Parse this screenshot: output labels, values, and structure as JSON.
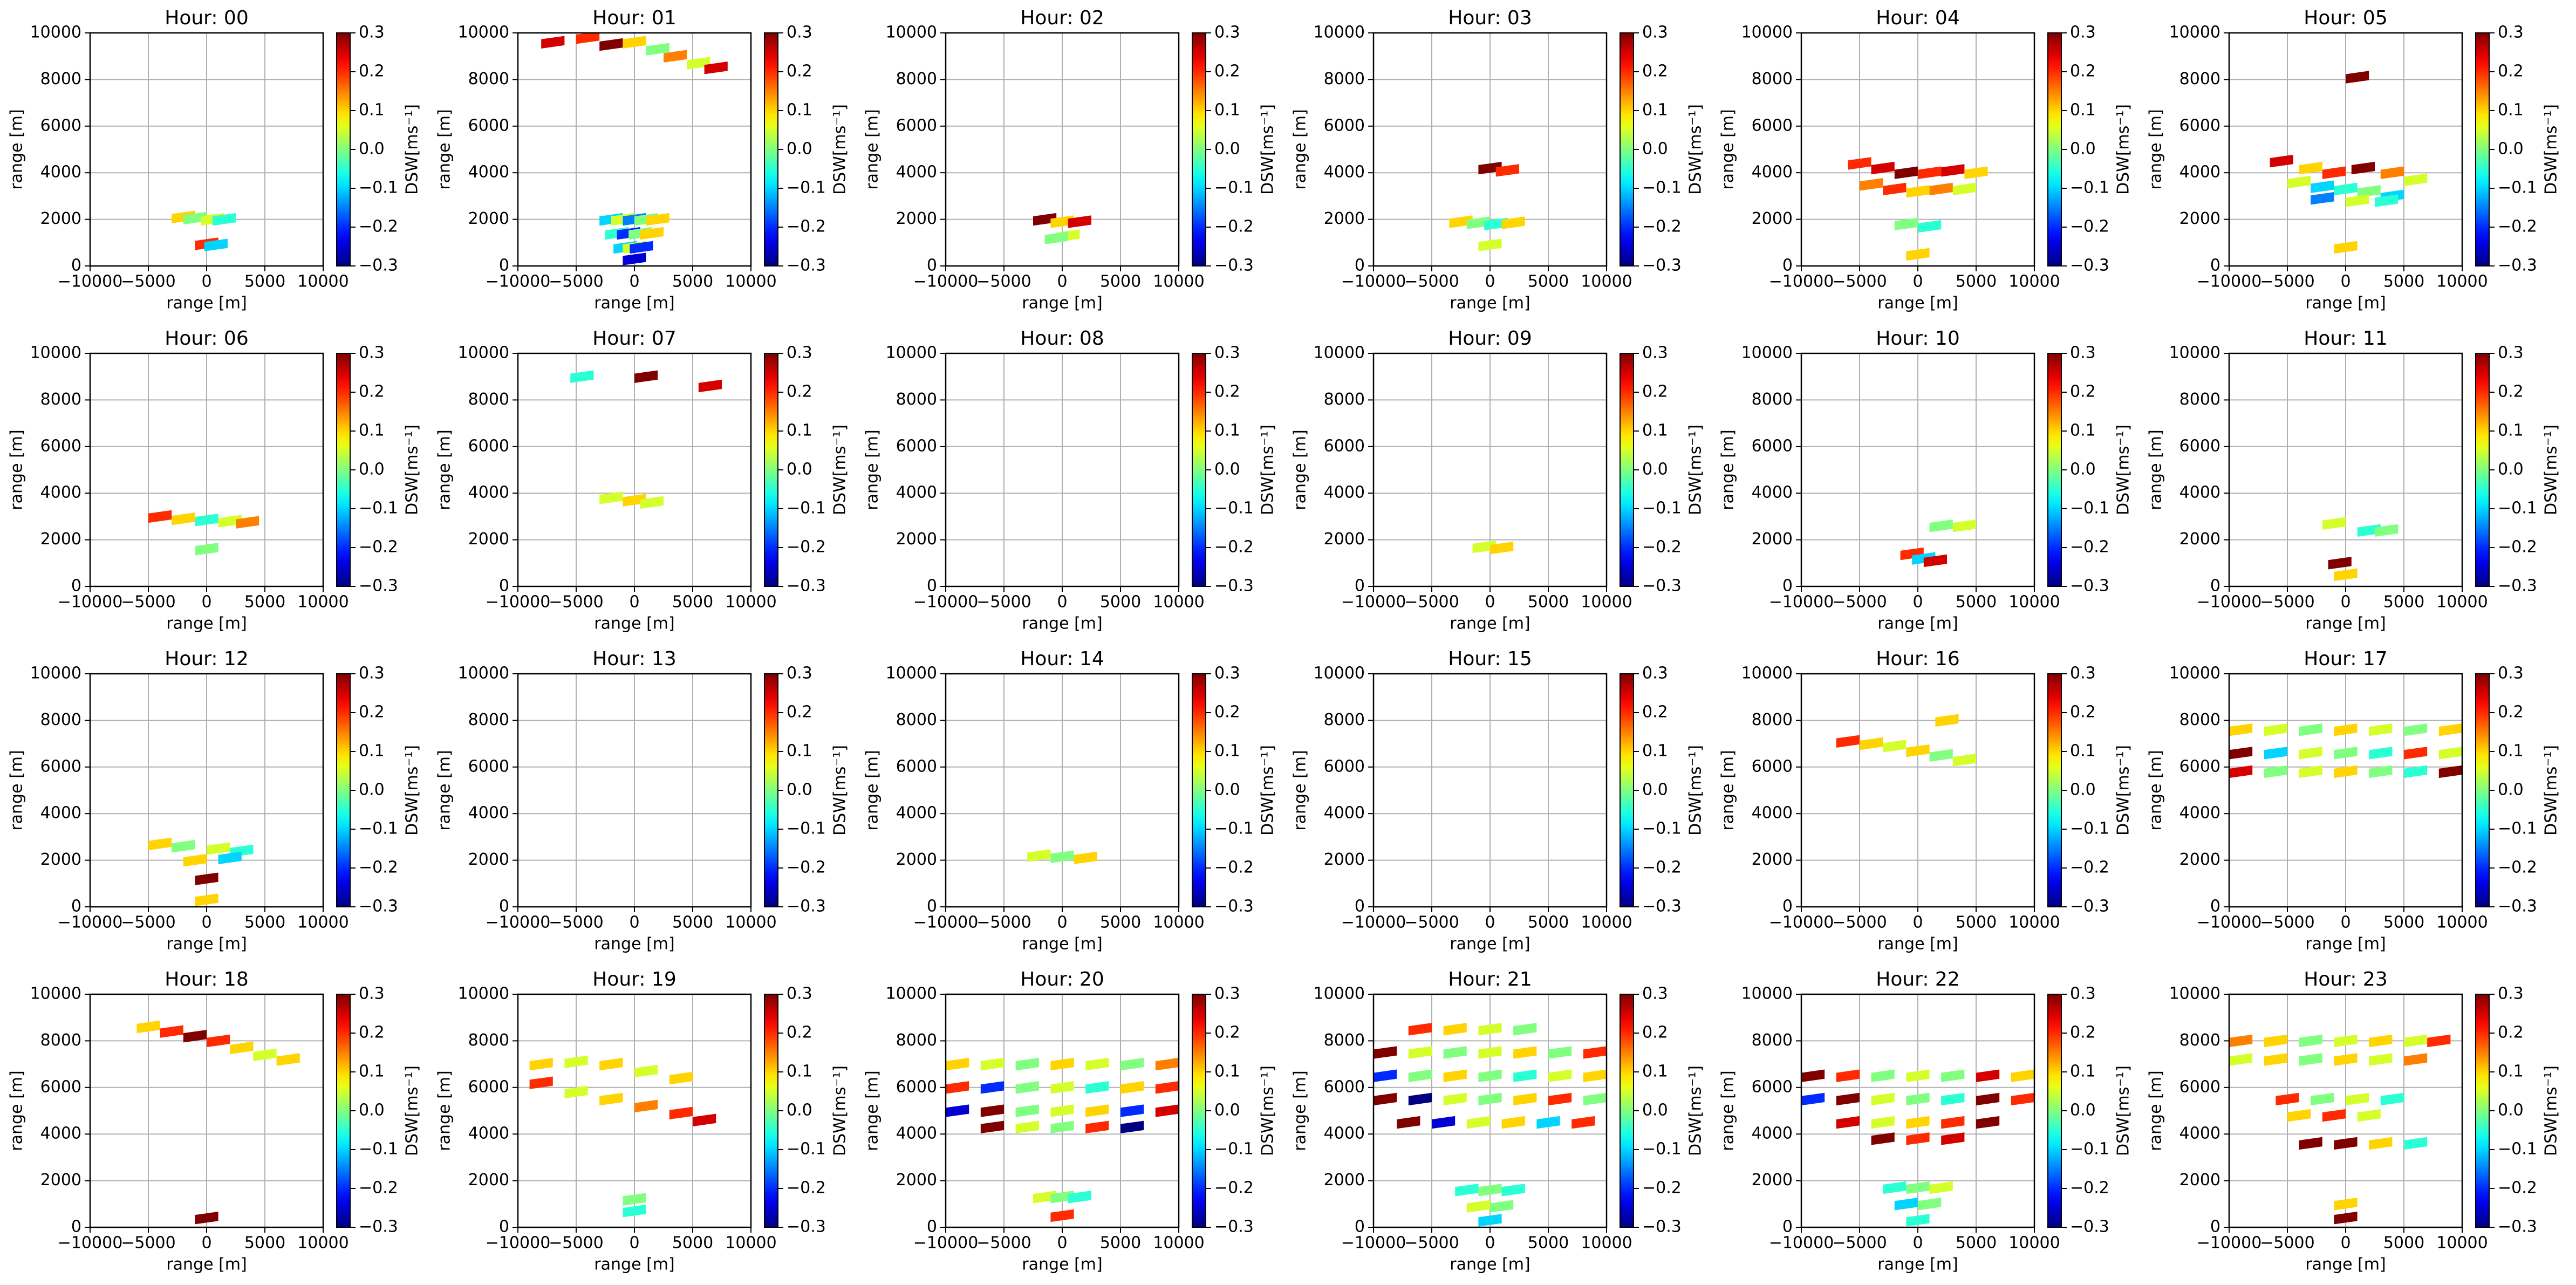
{
  "chart_data": {
    "type": "scatter",
    "colormap": "jet",
    "grid": true,
    "xlabel": "range [m]",
    "ylabel": "range [m]",
    "colorbar_label": "DSW[ms⁻¹]",
    "xlim": [
      -10000,
      10000
    ],
    "ylim": [
      0,
      10000
    ],
    "clim": [
      -0.3,
      0.3
    ],
    "xticks": [
      {
        "value": -10000,
        "label": "−10000"
      },
      {
        "value": -5000,
        "label": "−5000"
      },
      0,
      5000,
      10000
    ],
    "yticks": [
      0,
      2000,
      4000,
      6000,
      8000,
      10000
    ],
    "cticks": [
      {
        "value": -0.3,
        "label": "−0.3"
      },
      {
        "value": -0.2,
        "label": "−0.2"
      },
      {
        "value": -0.1,
        "label": "−0.1"
      },
      {
        "value": 0,
        "label": "0.0"
      },
      0.1,
      0.2,
      0.3
    ],
    "panels": [
      {
        "title": "Hour: 00",
        "x": [
          -2000,
          -1000,
          500,
          1500,
          0,
          800
        ],
        "y": [
          2100,
          2050,
          2000,
          2000,
          950,
          900
        ],
        "values": [
          0.1,
          0,
          0.05,
          -0.05,
          0.2,
          -0.1
        ]
      },
      {
        "title": "Hour: 01",
        "x": [
          -7000,
          -4000,
          -2000,
          0,
          2000,
          3500,
          5500,
          7000,
          -2000,
          -1000,
          0,
          1000,
          2000,
          -1500,
          -500,
          500,
          1500,
          -800,
          0,
          600,
          0
        ],
        "y": [
          9600,
          9800,
          9500,
          9600,
          9300,
          9000,
          8700,
          8500,
          2000,
          2000,
          2000,
          2000,
          2000,
          1400,
          1400,
          1400,
          1400,
          800,
          800,
          800,
          300
        ],
        "values": [
          0.25,
          0.2,
          0.3,
          0.1,
          0,
          0.15,
          0.05,
          0.25,
          -0.1,
          0.05,
          -0.15,
          0,
          0.1,
          -0.05,
          -0.2,
          0,
          0.1,
          -0.1,
          0.05,
          -0.2,
          -0.25
        ]
      },
      {
        "title": "Hour: 02",
        "x": [
          -1500,
          0,
          1500,
          500,
          -500
        ],
        "y": [
          2000,
          1900,
          1900,
          1300,
          1200
        ],
        "values": [
          0.3,
          0.1,
          0.25,
          0.05,
          0
        ]
      },
      {
        "title": "Hour: 03",
        "x": [
          0,
          1500,
          -2500,
          -1000,
          500,
          2000,
          0
        ],
        "y": [
          4200,
          4100,
          1900,
          1850,
          1800,
          1850,
          900
        ],
        "values": [
          0.3,
          0.2,
          0.1,
          0,
          -0.05,
          0.1,
          0.05
        ]
      },
      {
        "title": "Hour: 04",
        "x": [
          -5000,
          -3000,
          -1000,
          1000,
          3000,
          5000,
          -4000,
          -2000,
          0,
          2000,
          4000,
          -1000,
          1000,
          0
        ],
        "y": [
          4400,
          4200,
          4000,
          4000,
          4100,
          4000,
          3500,
          3300,
          3200,
          3300,
          3300,
          1800,
          1700,
          500
        ],
        "values": [
          0.2,
          0.25,
          0.3,
          0.2,
          0.25,
          0.1,
          0.15,
          0.2,
          0.1,
          0.15,
          0.05,
          0,
          -0.05,
          0.1
        ]
      },
      {
        "title": "Hour: 05",
        "x": [
          1000,
          -5500,
          -3000,
          -1000,
          1500,
          4000,
          6000,
          -4000,
          -2000,
          0,
          2000,
          4000,
          -2000,
          1000,
          3500,
          0
        ],
        "y": [
          8100,
          4500,
          4200,
          4000,
          4200,
          4000,
          3700,
          3600,
          3400,
          3300,
          3200,
          3000,
          2900,
          2800,
          2800,
          800
        ],
        "values": [
          0.3,
          0.25,
          0.1,
          0.2,
          0.3,
          0.15,
          0.05,
          0.05,
          -0.1,
          -0.05,
          0,
          -0.1,
          -0.15,
          0.05,
          -0.05,
          0.1
        ]
      },
      {
        "title": "Hour: 06",
        "x": [
          -4000,
          -2000,
          0,
          2000,
          3500,
          0
        ],
        "y": [
          3000,
          2900,
          2850,
          2800,
          2750,
          1600
        ],
        "values": [
          0.2,
          0.1,
          -0.05,
          0.05,
          0.15,
          0
        ]
      },
      {
        "title": "Hour: 07",
        "x": [
          -4500,
          1000,
          6500,
          -2000,
          0,
          1500
        ],
        "y": [
          9000,
          9000,
          8600,
          3800,
          3700,
          3600
        ],
        "values": [
          -0.05,
          0.3,
          0.25,
          0.05,
          0.1,
          0.05
        ]
      },
      {
        "title": "Hour: 08",
        "x": [],
        "y": [],
        "values": []
      },
      {
        "title": "Hour: 09",
        "x": [
          -500,
          1000
        ],
        "y": [
          1700,
          1650
        ],
        "values": [
          0.05,
          0.1
        ]
      },
      {
        "title": "Hour: 10",
        "x": [
          -500,
          500,
          1500,
          2000,
          4000
        ],
        "y": [
          1400,
          1200,
          1100,
          2600,
          2600
        ],
        "values": [
          0.2,
          -0.1,
          0.25,
          0,
          0.05
        ]
      },
      {
        "title": "Hour: 11",
        "x": [
          -1000,
          2000,
          3500,
          -500,
          0
        ],
        "y": [
          2700,
          2400,
          2400,
          1000,
          500
        ],
        "values": [
          0.05,
          -0.05,
          0,
          0.3,
          0.1
        ]
      },
      {
        "title": "Hour: 12",
        "x": [
          -4000,
          -2000,
          1000,
          3000,
          -1000,
          2000,
          0,
          0
        ],
        "y": [
          2700,
          2600,
          2500,
          2400,
          2000,
          2100,
          1200,
          300
        ],
        "values": [
          0.1,
          0,
          0.05,
          -0.05,
          0.1,
          -0.1,
          0.3,
          0.1
        ]
      },
      {
        "title": "Hour: 13",
        "x": [],
        "y": [],
        "values": []
      },
      {
        "title": "Hour: 14",
        "x": [
          -2000,
          0,
          2000
        ],
        "y": [
          2200,
          2150,
          2100
        ],
        "values": [
          0.05,
          0,
          0.1
        ]
      },
      {
        "title": "Hour: 15",
        "x": [],
        "y": [],
        "values": []
      },
      {
        "title": "Hour: 16",
        "x": [
          -6000,
          -4000,
          -2000,
          0,
          2000,
          4000,
          2500
        ],
        "y": [
          7100,
          7000,
          6900,
          6700,
          6500,
          6300,
          8000
        ],
        "values": [
          0.2,
          0.1,
          0.05,
          0.1,
          0,
          0.05,
          0.1
        ]
      },
      {
        "title": "Hour: 17",
        "x": [
          -9000,
          -6000,
          -3000,
          0,
          3000,
          6000,
          9000,
          -9000,
          -6000,
          -3000,
          0,
          3000,
          6000,
          9000,
          -9000,
          -6000,
          -3000,
          0,
          3000,
          6000,
          9000
        ],
        "y": [
          7600,
          7600,
          7600,
          7600,
          7600,
          7600,
          7600,
          6600,
          6600,
          6600,
          6600,
          6600,
          6600,
          6600,
          5800,
          5800,
          5800,
          5800,
          5800,
          5800,
          5800
        ],
        "values": [
          0.1,
          0.05,
          0,
          0.1,
          0.05,
          0,
          0.1,
          0.3,
          -0.1,
          0.05,
          0,
          -0.05,
          0.2,
          0.05,
          0.25,
          0,
          0.05,
          0.1,
          0,
          -0.05,
          0.3
        ]
      },
      {
        "title": "Hour: 18",
        "x": [
          -5000,
          -3000,
          -1000,
          1000,
          3000,
          5000,
          7000,
          0
        ],
        "y": [
          8600,
          8400,
          8200,
          8000,
          7700,
          7400,
          7200,
          400
        ],
        "values": [
          0.1,
          0.2,
          0.3,
          0.2,
          0.1,
          0.05,
          0.1,
          0.3
        ]
      },
      {
        "title": "Hour: 19",
        "x": [
          -8000,
          -5000,
          -2000,
          1000,
          4000,
          -8000,
          -5000,
          -2000,
          1000,
          4000,
          6000,
          0,
          0
        ],
        "y": [
          7000,
          7100,
          7000,
          6700,
          6400,
          6200,
          5800,
          5500,
          5200,
          4900,
          4600,
          1200,
          700
        ],
        "values": [
          0.1,
          0.05,
          0.1,
          0.05,
          0.1,
          0.2,
          0.05,
          0.1,
          0.15,
          0.2,
          0.25,
          0,
          -0.05
        ]
      },
      {
        "title": "Hour: 20",
        "x": [
          -9000,
          -6000,
          -3000,
          0,
          3000,
          6000,
          9000,
          -9000,
          -6000,
          -3000,
          0,
          3000,
          6000,
          9000,
          -9000,
          -6000,
          -3000,
          0,
          3000,
          6000,
          9000,
          -6000,
          -3000,
          0,
          3000,
          6000,
          -1500,
          0,
          1500,
          0
        ],
        "y": [
          7000,
          7000,
          7000,
          7000,
          7000,
          7000,
          7000,
          6000,
          6000,
          6000,
          6000,
          6000,
          6000,
          6000,
          5000,
          5000,
          5000,
          5000,
          5000,
          5000,
          5000,
          4300,
          4300,
          4300,
          4300,
          4300,
          1300,
          1300,
          1300,
          500
        ],
        "values": [
          0.1,
          0.05,
          0,
          0.1,
          0.05,
          0,
          0.15,
          0.2,
          -0.2,
          0,
          0.05,
          -0.05,
          0.1,
          0.2,
          -0.25,
          0.3,
          0,
          0.05,
          0.1,
          -0.2,
          0.25,
          0.3,
          0.05,
          0,
          0.2,
          -0.3,
          0.05,
          0,
          -0.05,
          0.2
        ]
      },
      {
        "title": "Hour: 21",
        "x": [
          -6000,
          -3000,
          0,
          3000,
          -9000,
          -6000,
          -3000,
          0,
          3000,
          6000,
          9000,
          -9000,
          -6000,
          -3000,
          0,
          3000,
          6000,
          9000,
          -9000,
          -6000,
          -3000,
          0,
          3000,
          6000,
          9000,
          -7000,
          -4000,
          -1000,
          2000,
          5000,
          8000,
          -2000,
          0,
          2000,
          -1000,
          1000,
          0
        ],
        "y": [
          8500,
          8500,
          8500,
          8500,
          7500,
          7500,
          7500,
          7500,
          7500,
          7500,
          7500,
          6500,
          6500,
          6500,
          6500,
          6500,
          6500,
          6500,
          5500,
          5500,
          5500,
          5500,
          5500,
          5500,
          5500,
          4500,
          4500,
          4500,
          4500,
          4500,
          4500,
          1600,
          1600,
          1600,
          900,
          900,
          300
        ],
        "values": [
          0.2,
          0.1,
          0.05,
          0,
          0.3,
          0.05,
          0,
          0.05,
          0.1,
          0,
          0.2,
          -0.2,
          0,
          0.1,
          0,
          -0.05,
          0.05,
          0.1,
          0.3,
          -0.3,
          0.05,
          0,
          0.1,
          0.2,
          0,
          0.3,
          -0.25,
          0.05,
          0.1,
          -0.1,
          0.2,
          -0.05,
          0,
          -0.05,
          0.05,
          0,
          -0.1
        ]
      },
      {
        "title": "Hour: 22",
        "x": [
          -9000,
          -6000,
          -3000,
          0,
          3000,
          6000,
          9000,
          -9000,
          -6000,
          -3000,
          0,
          3000,
          6000,
          9000,
          -6000,
          -3000,
          0,
          3000,
          6000,
          -3000,
          0,
          3000,
          -2000,
          0,
          2000,
          -1000,
          1000,
          0
        ],
        "y": [
          6500,
          6500,
          6500,
          6500,
          6500,
          6500,
          6500,
          5500,
          5500,
          5500,
          5500,
          5500,
          5500,
          5500,
          4500,
          4500,
          4500,
          4500,
          4500,
          3800,
          3800,
          3800,
          1700,
          1700,
          1700,
          1000,
          1000,
          300
        ],
        "values": [
          0.3,
          0.2,
          0,
          0.05,
          0,
          0.25,
          0.1,
          -0.2,
          0.3,
          0.05,
          0,
          -0.05,
          0.3,
          0.2,
          0.25,
          0.05,
          0.1,
          0.2,
          0.3,
          0.3,
          0.2,
          0.25,
          -0.05,
          0,
          0.05,
          -0.1,
          0,
          -0.05
        ]
      },
      {
        "title": "Hour: 23",
        "x": [
          -9000,
          -6000,
          -3000,
          0,
          3000,
          6000,
          8000,
          -9000,
          -6000,
          -3000,
          0,
          3000,
          6000,
          -5000,
          -2000,
          1000,
          4000,
          -4000,
          -1000,
          2000,
          -3000,
          0,
          3000,
          6000,
          0,
          0
        ],
        "y": [
          8000,
          8000,
          8000,
          8000,
          8000,
          8000,
          8000,
          7200,
          7200,
          7200,
          7200,
          7200,
          7200,
          5500,
          5500,
          5500,
          5500,
          4800,
          4800,
          4800,
          3600,
          3600,
          3600,
          3600,
          1000,
          400
        ],
        "values": [
          0.15,
          0.1,
          0,
          0.05,
          0.1,
          0.05,
          0.2,
          0.05,
          0.1,
          0,
          0.1,
          0.05,
          0.15,
          0.2,
          0,
          0.05,
          -0.05,
          0.1,
          0.2,
          0.05,
          0.3,
          0.3,
          0.1,
          -0.05,
          0.1,
          0.3
        ]
      }
    ]
  }
}
